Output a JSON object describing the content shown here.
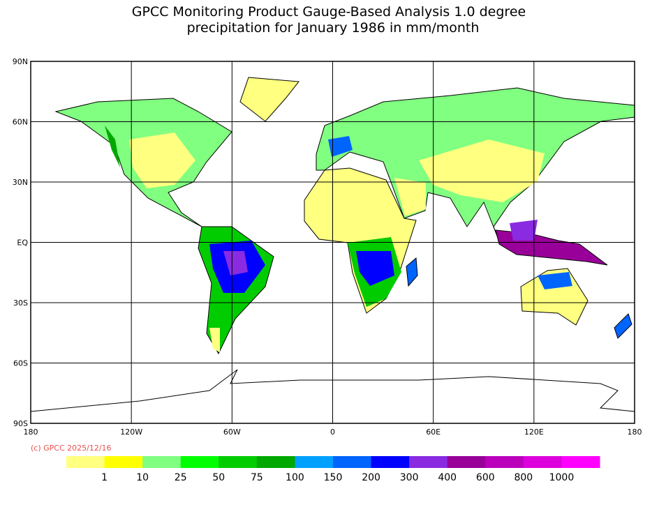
{
  "title": [
    "GPCC Monitoring Product Gauge-Based Analysis 1.0 degree",
    "precipitation for January  1986 in mm/month"
  ],
  "lat_labels": [
    "90N",
    "60N",
    "30N",
    "EQ",
    "30S",
    "60S",
    "90S"
  ],
  "lon_labels": [
    "180",
    "120W",
    "60W",
    "0",
    "60E",
    "120E",
    "180"
  ],
  "copyright": "(c) GPCC 2025/12/16",
  "colorbar": {
    "labels": [
      "1",
      "10",
      "25",
      "50",
      "75",
      "100",
      "150",
      "200",
      "300",
      "400",
      "600",
      "800",
      "1000"
    ],
    "colors": [
      "#ffff80",
      "#ffff00",
      "#80ff80",
      "#00ff00",
      "#00cc00",
      "#00a800",
      "#00a0ff",
      "#0064ff",
      "#0000ff",
      "#8a2be2",
      "#990099",
      "#bb00bb",
      "#dd00dd",
      "#ff00ff"
    ]
  }
}
